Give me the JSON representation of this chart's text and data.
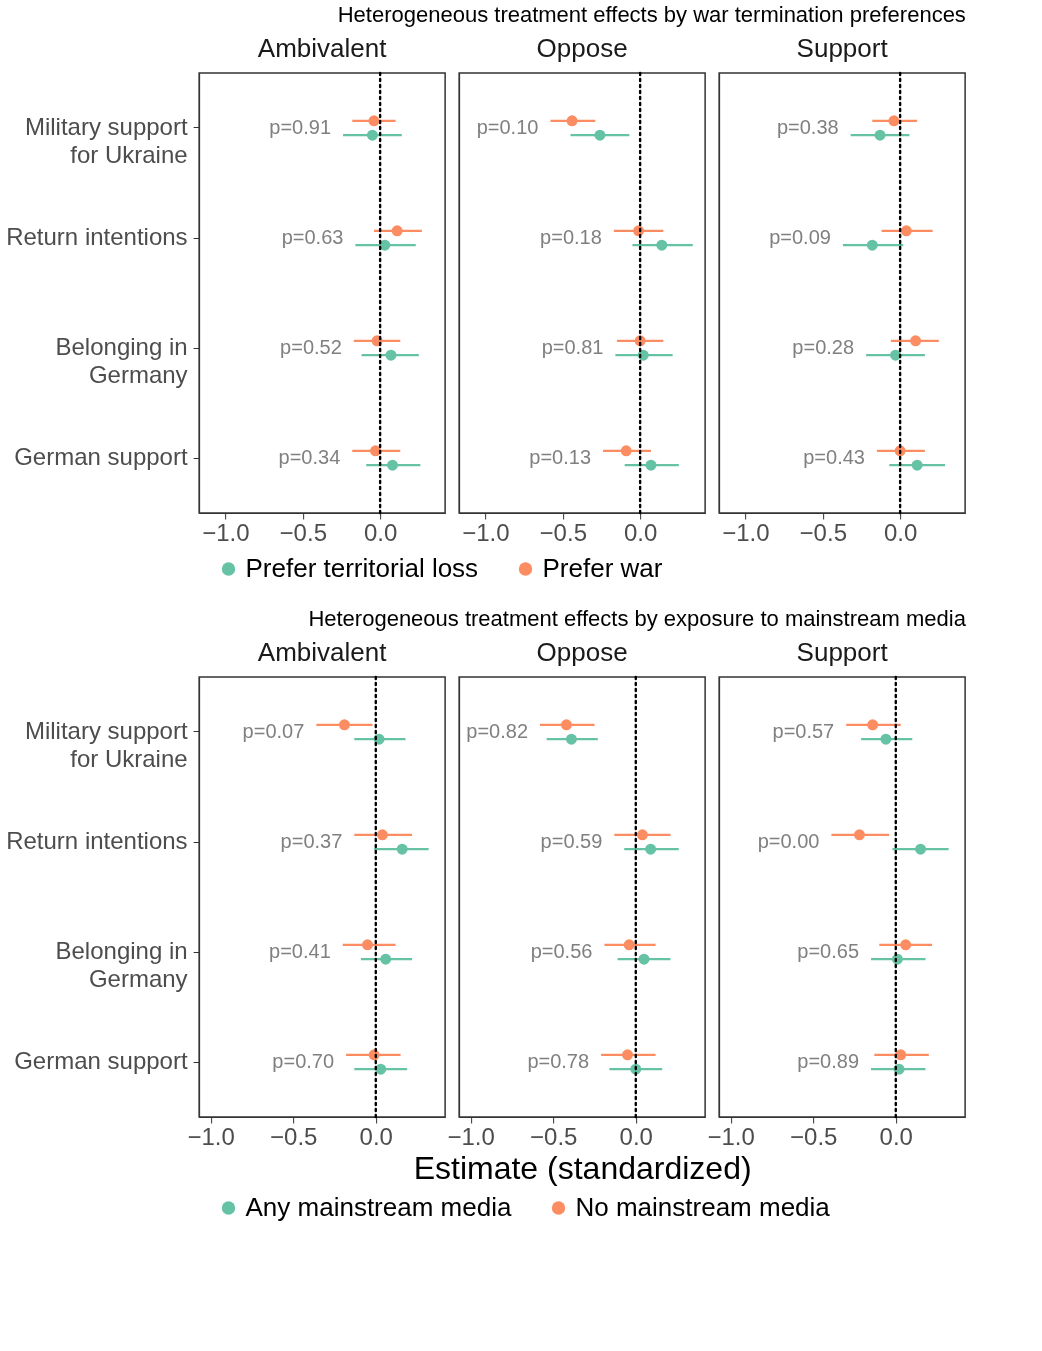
{
  "chart_data": [
    {
      "type": "scatter",
      "orientation": "horizontal",
      "title": "Ambivalent",
      "categories": [
        "Military support\nfor Ukraine",
        "Return intentions",
        "Belonging in\nGermany",
        "German support"
      ],
      "series": [
        {
          "name": "Prefer territorial loss",
          "color": "#66c2a5",
          "values": [
            -0.05,
            0.03,
            0.07,
            0.08
          ],
          "errors": [
            [
              -0.24,
              0.14
            ],
            [
              -0.16,
              0.23
            ],
            [
              -0.12,
              0.25
            ],
            [
              -0.09,
              0.26
            ]
          ]
        },
        {
          "name": "Prefer war",
          "color": "#fc8d62",
          "values": [
            -0.04,
            0.11,
            -0.02,
            -0.03
          ],
          "errors": [
            [
              -0.18,
              0.1
            ],
            [
              -0.04,
              0.27
            ],
            [
              -0.17,
              0.13
            ],
            [
              -0.18,
              0.13
            ]
          ]
        }
      ],
      "annotations": [
        "Heterogeneous treatment effects by war termination preferences",
        "p=0.91",
        "p=0.63",
        "p=0.52",
        "p=0.34"
      ],
      "xlim": [
        -1.17,
        0.42
      ],
      "xticks": [
        {
          "value": -1.0,
          "label": "−1.0"
        },
        {
          "value": -0.5,
          "label": "−0.5"
        },
        {
          "value": 0.0,
          "label": "0.0"
        }
      ],
      "ref_lines": [
        {
          "axis": "x",
          "value": 0,
          "color": "#000000",
          "line_style": "dotted"
        }
      ],
      "legend": "bottom",
      "grid": false,
      "marker": "circle"
    },
    {
      "type": "scatter",
      "orientation": "horizontal",
      "title": "Oppose",
      "categories": [
        null,
        null,
        null,
        null
      ],
      "series": [
        {
          "color": "#66c2a5",
          "values": [
            -0.26,
            0.14,
            0.02,
            0.07
          ],
          "errors": [
            [
              -0.45,
              -0.07
            ],
            [
              -0.05,
              0.34
            ],
            [
              -0.16,
              0.21
            ],
            [
              -0.1,
              0.25
            ]
          ]
        },
        {
          "color": "#fc8d62",
          "values": [
            -0.44,
            -0.01,
            0.0,
            -0.09
          ],
          "errors": [
            [
              -0.58,
              -0.29
            ],
            [
              -0.17,
              0.15
            ],
            [
              -0.15,
              0.15
            ],
            [
              -0.24,
              0.07
            ]
          ]
        }
      ],
      "annotations": [
        "p=0.10",
        "p=0.18",
        "p=0.81",
        "p=0.13"
      ],
      "xlim": [
        -1.17,
        0.42
      ],
      "xticks": [
        {
          "value": -1.0,
          "label": "−1.0"
        },
        {
          "value": -0.5,
          "label": "−0.5"
        },
        {
          "value": 0.0,
          "label": "0.0"
        }
      ],
      "ref_lines": [
        {
          "axis": "x",
          "value": 0,
          "color": "#000000",
          "line_style": "dotted"
        }
      ],
      "grid": false,
      "marker": "circle",
      "tick_labels": "x"
    },
    {
      "type": "scatter",
      "orientation": "horizontal",
      "title": "Support",
      "categories": [
        null,
        null,
        null,
        null
      ],
      "series": [
        {
          "color": "#66c2a5",
          "values": [
            -0.13,
            -0.18,
            -0.03,
            0.11
          ],
          "errors": [
            [
              -0.32,
              0.06
            ],
            [
              -0.37,
              0.02
            ],
            [
              -0.22,
              0.16
            ],
            [
              -0.07,
              0.29
            ]
          ]
        },
        {
          "color": "#fc8d62",
          "values": [
            -0.04,
            0.04,
            0.1,
            0.0
          ],
          "errors": [
            [
              -0.18,
              0.11
            ],
            [
              -0.12,
              0.21
            ],
            [
              -0.06,
              0.25
            ],
            [
              -0.15,
              0.16
            ]
          ]
        }
      ],
      "annotations": [
        "p=0.38",
        "p=0.09",
        "p=0.28",
        "p=0.43"
      ],
      "xlim": [
        -1.17,
        0.42
      ],
      "xticks": [
        {
          "value": -1.0,
          "label": "−1.0"
        },
        {
          "value": -0.5,
          "label": "−0.5"
        },
        {
          "value": 0.0,
          "label": "0.0"
        }
      ],
      "ref_lines": [
        {
          "axis": "x",
          "value": 0,
          "color": "#000000",
          "line_style": "dotted"
        }
      ],
      "grid": false,
      "marker": "circle",
      "tick_labels": "x"
    },
    {
      "type": "scatter",
      "orientation": "horizontal",
      "title": "Ambivalent",
      "categories": [
        "Military support\nfor Ukraine",
        "Return intentions",
        "Belonging in\nGermany",
        "German support"
      ],
      "series": [
        {
          "name": "Any mainstream media",
          "color": "#66c2a5",
          "values": [
            0.02,
            0.16,
            0.06,
            0.03
          ],
          "errors": [
            [
              -0.13,
              0.18
            ],
            [
              -0.01,
              0.32
            ],
            [
              -0.09,
              0.22
            ],
            [
              -0.13,
              0.19
            ]
          ]
        },
        {
          "name": "No mainstream media",
          "color": "#fc8d62",
          "values": [
            -0.19,
            0.04,
            -0.05,
            -0.01
          ],
          "errors": [
            [
              -0.36,
              -0.02
            ],
            [
              -0.13,
              0.22
            ],
            [
              -0.2,
              0.12
            ],
            [
              -0.18,
              0.15
            ]
          ]
        }
      ],
      "annotations": [
        "Heterogeneous treatment effects by exposure to mainstream media",
        "p=0.07",
        "p=0.37",
        "p=0.41",
        "p=0.70"
      ],
      "xlim": [
        -1.07,
        0.42
      ],
      "xticks": [
        {
          "value": -1.0,
          "label": "−1.0"
        },
        {
          "value": -0.5,
          "label": "−0.5"
        },
        {
          "value": 0.0,
          "label": "0.0"
        }
      ],
      "ref_lines": [
        {
          "axis": "x",
          "value": 0,
          "color": "#000000",
          "line_style": "dotted"
        }
      ],
      "legend": "bottom",
      "grid": false,
      "marker": "circle"
    },
    {
      "type": "scatter",
      "orientation": "horizontal",
      "title": "Oppose",
      "xlabel": "Estimate (standardized)",
      "categories": [
        null,
        null,
        null,
        null
      ],
      "series": [
        {
          "color": "#66c2a5",
          "values": [
            -0.39,
            0.09,
            0.05,
            0.0
          ],
          "errors": [
            [
              -0.54,
              -0.23
            ],
            [
              -0.07,
              0.26
            ],
            [
              -0.11,
              0.21
            ],
            [
              -0.16,
              0.16
            ]
          ]
        },
        {
          "color": "#fc8d62",
          "values": [
            -0.42,
            0.04,
            -0.04,
            -0.05
          ],
          "errors": [
            [
              -0.58,
              -0.25
            ],
            [
              -0.13,
              0.21
            ],
            [
              -0.19,
              0.12
            ],
            [
              -0.21,
              0.12
            ]
          ]
        }
      ],
      "annotations": [
        "p=0.82",
        "p=0.59",
        "p=0.56",
        "p=0.78"
      ],
      "xlim": [
        -1.07,
        0.42
      ],
      "xticks": [
        {
          "value": -1.0,
          "label": "−1.0"
        },
        {
          "value": -0.5,
          "label": "−0.5"
        },
        {
          "value": 0.0,
          "label": "0.0"
        }
      ],
      "ref_lines": [
        {
          "axis": "x",
          "value": 0,
          "color": "#000000",
          "line_style": "dotted"
        }
      ],
      "grid": false,
      "marker": "circle",
      "tick_labels": "x"
    },
    {
      "type": "scatter",
      "orientation": "horizontal",
      "title": "Support",
      "categories": [
        null,
        null,
        null,
        null
      ],
      "series": [
        {
          "color": "#66c2a5",
          "values": [
            -0.06,
            0.15,
            0.01,
            0.02
          ],
          "errors": [
            [
              -0.21,
              0.1
            ],
            [
              -0.02,
              0.32
            ],
            [
              -0.15,
              0.18
            ],
            [
              -0.15,
              0.18
            ]
          ]
        },
        {
          "color": "#fc8d62",
          "values": [
            -0.14,
            -0.22,
            0.06,
            0.03
          ],
          "errors": [
            [
              -0.3,
              0.03
            ],
            [
              -0.39,
              -0.04
            ],
            [
              -0.1,
              0.22
            ],
            [
              -0.13,
              0.2
            ]
          ]
        }
      ],
      "annotations": [
        "p=0.57",
        "p=0.00",
        "p=0.65",
        "p=0.89"
      ],
      "xlim": [
        -1.07,
        0.42
      ],
      "xticks": [
        {
          "value": -1.0,
          "label": "−1.0"
        },
        {
          "value": -0.5,
          "label": "−0.5"
        },
        {
          "value": 0.0,
          "label": "0.0"
        }
      ],
      "ref_lines": [
        {
          "axis": "x",
          "value": 0,
          "color": "#000000",
          "line_style": "dotted"
        }
      ],
      "grid": false,
      "marker": "circle",
      "tick_labels": "x"
    }
  ]
}
